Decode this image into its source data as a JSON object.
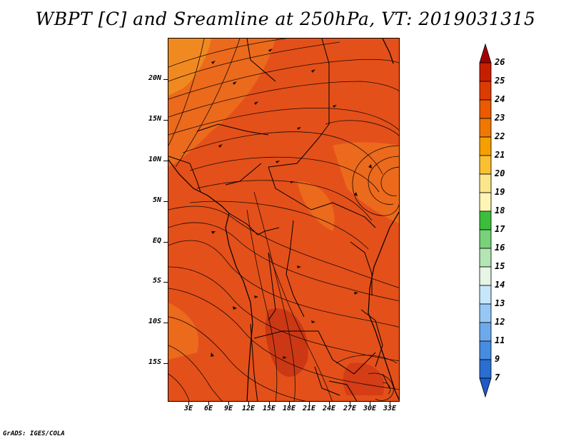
{
  "title": "WBPT [C] and Sreamline at 250hPa, VT: 2019031315",
  "credit": "GrADS: IGES/COLA",
  "axes": {
    "lat_labels": [
      "20N",
      "15N",
      "10N",
      "5N",
      "EQ",
      "5S",
      "10S",
      "15S"
    ],
    "lon_labels": [
      "3E",
      "6E",
      "9E",
      "12E",
      "15E",
      "18E",
      "21E",
      "24E",
      "27E",
      "30E",
      "33E"
    ]
  },
  "colorbar": {
    "labels": [
      "26",
      "25",
      "24",
      "23",
      "22",
      "21",
      "20",
      "19",
      "18",
      "17",
      "16",
      "15",
      "14",
      "13",
      "12",
      "11",
      "9",
      "7"
    ],
    "colors": [
      "#a50000",
      "#c81e00",
      "#dc3c00",
      "#eb5a00",
      "#f07800",
      "#f5a000",
      "#fac032",
      "#fae68c",
      "#fff5b4",
      "#3cbe3c",
      "#78d278",
      "#b4e6b4",
      "#e6f5e6",
      "#c8e6fa",
      "#96c8f5",
      "#6eaaeb",
      "#468ce1",
      "#2a6ed2",
      "#1e5ac8"
    ]
  },
  "colors": {
    "map_base": "#e4501a",
    "map_dark": "#d33c16",
    "map_light": "#ef7a1e",
    "map_yellow": "#f5a41e"
  }
}
